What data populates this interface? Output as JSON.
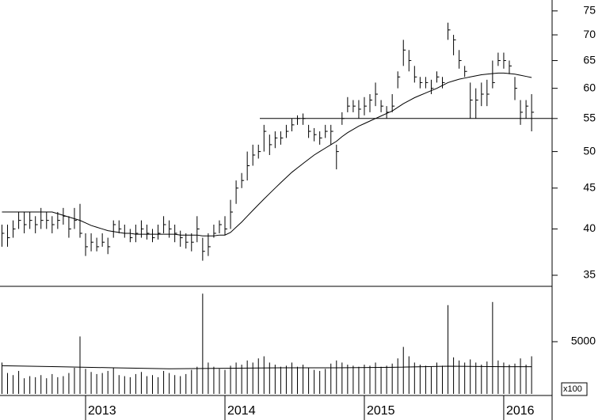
{
  "chart_data": {
    "type": "ohlc",
    "color": "#000000",
    "log_scale": true,
    "x": [
      2012.4,
      2012.44,
      2012.48,
      2012.52,
      2012.56,
      2012.6,
      2012.64,
      2012.68,
      2012.72,
      2012.76,
      2012.8,
      2012.84,
      2012.88,
      2012.92,
      2012.96,
      2013.0,
      2013.04,
      2013.08,
      2013.12,
      2013.16,
      2013.2,
      2013.24,
      2013.28,
      2013.32,
      2013.36,
      2013.4,
      2013.44,
      2013.48,
      2013.52,
      2013.56,
      2013.6,
      2013.64,
      2013.68,
      2013.72,
      2013.76,
      2013.8,
      2013.84,
      2013.88,
      2013.92,
      2013.96,
      2014.0,
      2014.04,
      2014.08,
      2014.12,
      2014.16,
      2014.2,
      2014.24,
      2014.28,
      2014.32,
      2014.36,
      2014.4,
      2014.44,
      2014.48,
      2014.52,
      2014.56,
      2014.6,
      2014.64,
      2014.68,
      2014.72,
      2014.76,
      2014.8,
      2014.84,
      2014.88,
      2014.92,
      2014.96,
      2015.0,
      2015.04,
      2015.08,
      2015.12,
      2015.16,
      2015.2,
      2015.24,
      2015.28,
      2015.32,
      2015.36,
      2015.4,
      2015.44,
      2015.48,
      2015.52,
      2015.56,
      2015.6,
      2015.64,
      2015.68,
      2015.72,
      2015.76,
      2015.8,
      2015.84,
      2015.88,
      2015.92,
      2015.96,
      2016.0,
      2016.04,
      2016.08,
      2016.12,
      2016.16,
      2016.2
    ],
    "high": [
      40.5,
      40.5,
      41,
      42,
      42,
      42,
      41.5,
      42.5,
      42,
      41.5,
      42,
      42.5,
      41.5,
      42.5,
      43,
      39.5,
      39.5,
      39,
      39.5,
      39,
      41,
      41,
      40.5,
      40,
      40.5,
      41,
      40.5,
      40,
      40.5,
      41.5,
      41,
      40.5,
      39.8,
      39.5,
      39.5,
      41.5,
      39,
      39.5,
      40.5,
      41,
      41.5,
      43.5,
      46,
      47,
      50,
      51,
      51,
      54,
      52.5,
      53,
      53,
      54,
      55,
      55.5,
      55.8,
      54,
      53.5,
      53,
      54,
      54,
      51,
      56,
      58.5,
      58,
      58,
      58.5,
      59,
      61,
      58,
      57,
      59,
      63,
      69,
      67,
      64,
      62,
      62,
      61.5,
      63,
      62,
      72.5,
      70,
      67,
      64,
      61,
      60,
      61,
      61.5,
      65,
      66.5,
      66.5,
      65,
      62,
      58,
      58,
      59
    ],
    "low": [
      38,
      38,
      39,
      40,
      39.5,
      40,
      39.5,
      40,
      40,
      39.5,
      40,
      40.5,
      39,
      40,
      39,
      37,
      37.5,
      37.5,
      38,
      37.2,
      39,
      39.5,
      39,
      38.5,
      38.5,
      39,
      38.8,
      38.5,
      38.8,
      39.5,
      39,
      38.5,
      38,
      37.8,
      37.5,
      38.5,
      36.5,
      37,
      39,
      39.5,
      39.3,
      40,
      43,
      45,
      46,
      48,
      49,
      50,
      49.5,
      50.5,
      51,
      52,
      53,
      54,
      54,
      52,
      51.5,
      51,
      52,
      51,
      47.5,
      54,
      56,
      56,
      55,
      55.5,
      56,
      57,
      56,
      55,
      56,
      60,
      64,
      63,
      61,
      60,
      60,
      59,
      61,
      60,
      69,
      66,
      63.5,
      62,
      55,
      55,
      57,
      57,
      60,
      64,
      63.5,
      62.5,
      58,
      54,
      55,
      53
    ],
    "close": [
      39.5,
      39,
      40,
      41,
      40.5,
      41,
      40.5,
      41,
      41,
      40.5,
      41,
      41.5,
      40,
      41,
      39.5,
      38,
      38.5,
      38,
      38.5,
      38,
      40.5,
      40,
      39.5,
      39,
      39.5,
      40,
      39.5,
      39,
      39.5,
      40.5,
      40,
      39.5,
      39,
      38.5,
      38.5,
      40,
      37.5,
      38,
      39.5,
      40.5,
      40,
      42,
      45,
      46,
      48,
      49.5,
      50,
      53,
      51,
      52,
      52,
      53,
      54,
      55,
      55,
      53,
      52.5,
      52,
      53,
      53,
      50,
      55,
      57,
      57,
      56.5,
      57,
      58,
      59,
      57,
      56,
      57,
      62,
      67,
      65,
      62,
      61,
      61,
      60,
      62,
      61,
      71,
      69,
      65,
      63,
      58,
      58,
      59,
      59,
      61,
      65,
      65,
      64,
      60,
      56,
      57,
      56
    ],
    "ma": [
      42,
      42,
      42,
      42,
      42,
      42,
      42,
      42,
      42,
      42,
      41.8,
      41.6,
      41.4,
      41.2,
      41,
      40.7,
      40.4,
      40.2,
      40,
      39.8,
      39.7,
      39.6,
      39.5,
      39.5,
      39.4,
      39.4,
      39.4,
      39.4,
      39.4,
      39.4,
      39.4,
      39.4,
      39.3,
      39.3,
      39.3,
      39.3,
      39.2,
      39.2,
      39.2,
      39.3,
      39.3,
      39.6,
      40.2,
      40.8,
      41.5,
      42.2,
      42.9,
      43.6,
      44.3,
      45,
      45.7,
      46.4,
      47.1,
      47.7,
      48.3,
      48.9,
      49.5,
      50,
      50.5,
      51,
      51.5,
      52.2,
      52.8,
      53.3,
      53.8,
      54.2,
      54.6,
      55,
      55.4,
      55.8,
      56.2,
      56.8,
      57.4,
      57.9,
      58.4,
      58.8,
      59.2,
      59.6,
      60,
      60.5,
      61,
      61.3,
      61.6,
      61.8,
      62,
      62.2,
      62.4,
      62.5,
      62.6,
      62.7,
      62.7,
      62.6,
      62.5,
      62.3,
      62.1,
      61.9
    ],
    "ylim": [
      33.9,
      77.4
    ],
    "yticks": [
      35,
      40,
      45,
      50,
      55,
      60,
      65,
      70,
      75
    ],
    "xlim": [
      2012.386,
      2016.347
    ],
    "xticks": [
      2013,
      2014,
      2015,
      2016
    ],
    "hline": {
      "value": 55,
      "x_start": 2014.25
    },
    "volume": {
      "values": [
        3000,
        2000,
        1800,
        2200,
        1500,
        1700,
        1600,
        1800,
        1500,
        1900,
        1600,
        1700,
        2000,
        2500,
        5500,
        2400,
        2100,
        1900,
        2000,
        2200,
        2500,
        1800,
        1700,
        1600,
        1900,
        2100,
        1700,
        1800,
        1600,
        2200,
        2000,
        1800,
        1700,
        1900,
        2300,
        2600,
        9600,
        3000,
        2600,
        2400,
        2300,
        2700,
        3000,
        2800,
        3200,
        3000,
        3400,
        3600,
        3000,
        2800,
        2600,
        2700,
        3000,
        2600,
        2800,
        2500,
        2300,
        2200,
        2400,
        2900,
        3200,
        3000,
        2800,
        2700,
        2600,
        2800,
        2700,
        3000,
        2600,
        2700,
        2900,
        3400,
        4500,
        3600,
        3000,
        2800,
        2700,
        2600,
        3000,
        2700,
        8500,
        3500,
        3200,
        3000,
        3300,
        3000,
        2800,
        3100,
        8800,
        3200,
        3000,
        2800,
        2900,
        3400,
        2800,
        3600
      ],
      "ma_x": [
        2012.4,
        2012.8,
        2013.2,
        2013.6,
        2014.0,
        2014.4,
        2014.8,
        2015.2,
        2015.6,
        2016.0,
        2016.2
      ],
      "ma_values": [
        2700,
        2600,
        2500,
        2400,
        2450,
        2500,
        2500,
        2550,
        2650,
        2600,
        2600
      ],
      "ylim": [
        0,
        10300
      ],
      "yticks": [
        5000
      ],
      "unit": "x100"
    }
  }
}
